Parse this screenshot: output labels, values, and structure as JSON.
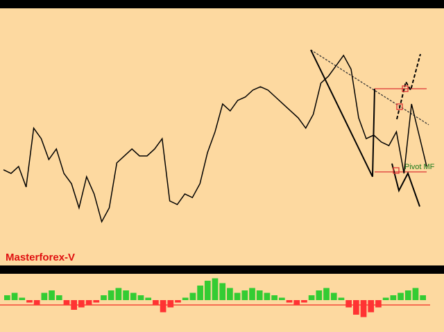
{
  "chart_data": [
    {
      "type": "line",
      "annotations": [
        "Masterforex-V",
        "Pivot MF"
      ],
      "series": [
        {
          "color": "#000000",
          "values": [
            37.2,
            35.8,
            38.5,
            30.5,
            53.4,
            49.3,
            41.2,
            45.3,
            35.8,
            31.8,
            22.4,
            34.5,
            27.8,
            17.0,
            22.4,
            39.9,
            42.6,
            45.3,
            42.6,
            42.6,
            45.3,
            49.3,
            25.1,
            23.7,
            27.8,
            26.4,
            31.8,
            43.9,
            52.0,
            62.8,
            60.1,
            64.2,
            65.5,
            68.2,
            69.5,
            68.2,
            65.5,
            62.8,
            60.1,
            57.4,
            53.4,
            58.8,
            70.9,
            73.6,
            77.6,
            81.7,
            76.3,
            57.4,
            49.3,
            50.7,
            48.0,
            46.6,
            52.0,
            35.8,
            62.8,
            50.7,
            38.5
          ]
        }
      ],
      "ylim": [
        0,
        100
      ]
    },
    {
      "type": "bar",
      "color": "#33cc33",
      "negative_color": "#ff3333",
      "values": [
        2,
        3,
        1,
        -1,
        -2,
        3,
        4,
        2,
        -2,
        -4,
        -3,
        -2,
        -1,
        2,
        4,
        5,
        4,
        3,
        2,
        1,
        -2,
        -5,
        -3,
        -1,
        1,
        3,
        6,
        8,
        9,
        7,
        5,
        3,
        4,
        5,
        4,
        3,
        2,
        1,
        -1,
        -2,
        -1,
        2,
        4,
        5,
        3,
        1,
        -3,
        -6,
        -7,
        -5,
        -3,
        1,
        2,
        3,
        4,
        5,
        2
      ],
      "ylim": [
        -10,
        10
      ]
    }
  ]
}
